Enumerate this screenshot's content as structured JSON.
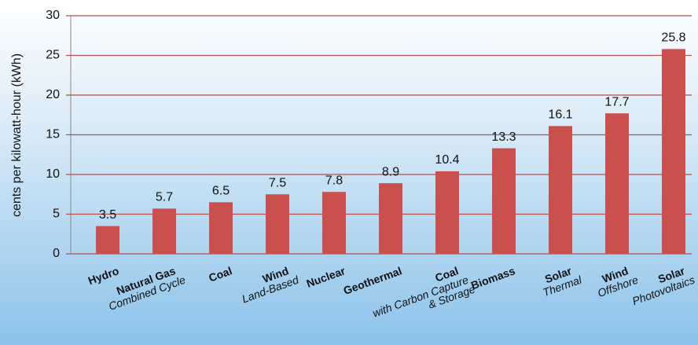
{
  "chart_data": {
    "type": "bar",
    "y_label": "cents per  kilowatt-hour (kWh)",
    "categories": [
      "Hydro",
      "Natural Gas",
      "Coal",
      "Wind",
      "Nuclear",
      "Geothermal",
      "Coal",
      "Biomass",
      "Solar",
      "Wind",
      "Solar"
    ],
    "category_subtitles": [
      [],
      [
        "Combined Cycle"
      ],
      [],
      [
        "Land-Based"
      ],
      [],
      [],
      [
        "with Carbon Capture",
        "& Storage"
      ],
      [],
      [
        "Thermal"
      ],
      [
        "Offshore"
      ],
      [
        "Photovoltaics"
      ]
    ],
    "values": [
      3.5,
      5.7,
      6.5,
      7.5,
      7.8,
      8.9,
      10.4,
      13.3,
      16.1,
      17.7,
      25.8
    ],
    "color": "#c9504c",
    "ylim": [
      0,
      30
    ],
    "yticks": [
      0,
      5,
      10,
      15,
      20,
      25,
      30
    ],
    "grid": true
  }
}
